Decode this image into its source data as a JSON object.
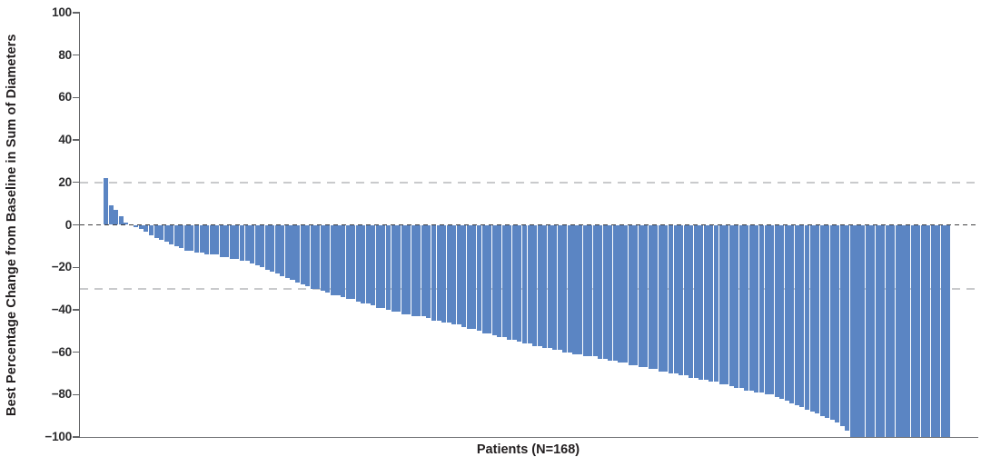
{
  "figure": {
    "background": "#ffffff"
  },
  "colors": {
    "bar": "#5b85c3",
    "axis": "#636467",
    "text": "#231f20",
    "reference_gray": "#c9cacc",
    "reference_black": "#414042"
  },
  "chart_data": {
    "type": "bar",
    "subtype": "waterfall",
    "title": "",
    "xlabel": "Patients (N=168)",
    "ylabel": "Best Percentage Change from Baseline in Sum of Diameters",
    "ylim": [
      -100,
      100
    ],
    "grid": "off",
    "legend": "none",
    "bar_color": "#5b85c3",
    "yticks": [
      {
        "value": 100,
        "label": "100"
      },
      {
        "value": 80,
        "label": "80"
      },
      {
        "value": 60,
        "label": "60"
      },
      {
        "value": 40,
        "label": "40"
      },
      {
        "value": 20,
        "label": "20"
      },
      {
        "value": 0,
        "label": "0"
      },
      {
        "value": -20,
        "label": "−20"
      },
      {
        "value": -40,
        "label": "−40"
      },
      {
        "value": -60,
        "label": "−60"
      },
      {
        "value": -80,
        "label": "−80"
      },
      {
        "value": -100,
        "label": "−100"
      }
    ],
    "reference_lines": [
      {
        "value": 20,
        "color": "#c9cacc",
        "style": "dashed",
        "dash": 9,
        "gap": 7,
        "thickness": 2
      },
      {
        "value": 0,
        "color": "#414042",
        "style": "dashed",
        "dash": 5,
        "gap": 4,
        "thickness": 1.6
      },
      {
        "value": -30,
        "color": "#c9cacc",
        "style": "dashed",
        "dash": 9,
        "gap": 7,
        "thickness": 2
      }
    ],
    "values": [
      22,
      9,
      7,
      4,
      1,
      0,
      -1,
      -2,
      -3,
      -5,
      -6,
      -7,
      -8,
      -9,
      -10,
      -11,
      -12,
      -12,
      -13,
      -13,
      -14,
      -14,
      -14,
      -15,
      -15,
      -16,
      -16,
      -17,
      -17,
      -18,
      -19,
      -20,
      -21,
      -22,
      -23,
      -24,
      -25,
      -26,
      -27,
      -28,
      -29,
      -30,
      -30,
      -31,
      -32,
      -33,
      -33,
      -34,
      -35,
      -35,
      -36,
      -37,
      -37,
      -38,
      -39,
      -39,
      -40,
      -41,
      -41,
      -42,
      -42,
      -43,
      -43,
      -43,
      -44,
      -45,
      -45,
      -46,
      -46,
      -47,
      -47,
      -48,
      -49,
      -49,
      -50,
      -51,
      -51,
      -52,
      -53,
      -53,
      -54,
      -54,
      -55,
      -56,
      -56,
      -57,
      -57,
      -58,
      -58,
      -59,
      -59,
      -60,
      -60,
      -61,
      -61,
      -62,
      -62,
      -62,
      -63,
      -63,
      -64,
      -64,
      -65,
      -65,
      -66,
      -66,
      -67,
      -67,
      -68,
      -68,
      -69,
      -69,
      -70,
      -70,
      -71,
      -71,
      -72,
      -72,
      -73,
      -73,
      -74,
      -74,
      -75,
      -75,
      -76,
      -77,
      -77,
      -78,
      -78,
      -79,
      -79,
      -80,
      -80,
      -81,
      -82,
      -83,
      -84,
      -85,
      -86,
      -87,
      -88,
      -89,
      -90,
      -91,
      -92,
      -93,
      -95,
      -97,
      -100,
      -100,
      -100,
      -100,
      -100,
      -100,
      -100,
      -100,
      -100,
      -100,
      -100,
      -100,
      -100,
      -100,
      -100,
      -100,
      -100,
      -100,
      -100,
      -100
    ]
  }
}
